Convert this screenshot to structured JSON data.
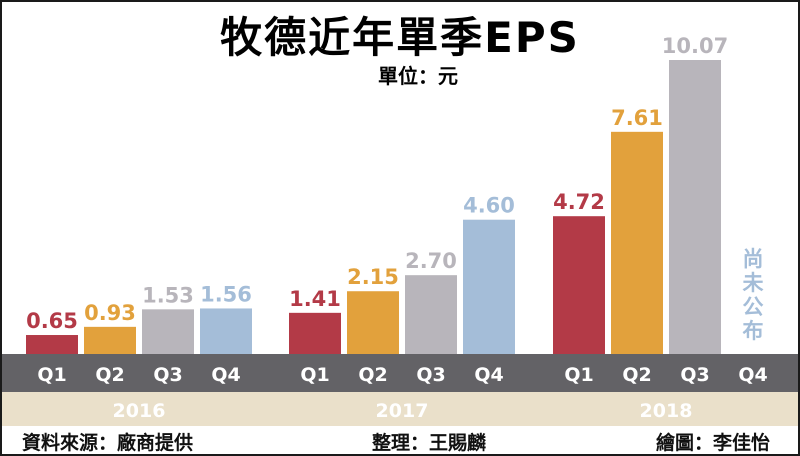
{
  "title": "牧德近年單季EPS",
  "unit_label": "單位：元",
  "footer": {
    "source": "資料來源：廠商提供",
    "editor": "整理：王賜麟",
    "artist": "繪圖：李佳怡"
  },
  "not_announced": "尚未公布",
  "colors": {
    "Q1": "#b33a47",
    "Q2": "#e2a13c",
    "Q3": "#b8b5bb",
    "Q4": "#a4bdd8",
    "quarter_band": "#636266",
    "year_band": "#eae0ca"
  },
  "chart_data": {
    "type": "bar",
    "ylabel": "單位：元",
    "groups": [
      {
        "year": "2016",
        "bars": [
          {
            "quarter": "Q1",
            "value": 0.65,
            "label": "0.65"
          },
          {
            "quarter": "Q2",
            "value": 0.93,
            "label": "0.93"
          },
          {
            "quarter": "Q3",
            "value": 1.53,
            "label": "1.53"
          },
          {
            "quarter": "Q4",
            "value": 1.56,
            "label": "1.56"
          }
        ]
      },
      {
        "year": "2017",
        "bars": [
          {
            "quarter": "Q1",
            "value": 1.41,
            "label": "1.41"
          },
          {
            "quarter": "Q2",
            "value": 2.15,
            "label": "2.15"
          },
          {
            "quarter": "Q3",
            "value": 2.7,
            "label": "2.70"
          },
          {
            "quarter": "Q4",
            "value": 4.6,
            "label": "4.60"
          }
        ]
      },
      {
        "year": "2018",
        "bars": [
          {
            "quarter": "Q1",
            "value": 4.72,
            "label": "4.72"
          },
          {
            "quarter": "Q2",
            "value": 7.61,
            "label": "7.61"
          },
          {
            "quarter": "Q3",
            "value": 10.07,
            "label": "10.07"
          },
          {
            "quarter": "Q4",
            "value": null,
            "label": ""
          }
        ]
      }
    ],
    "ylim": [
      0,
      10.07
    ]
  }
}
